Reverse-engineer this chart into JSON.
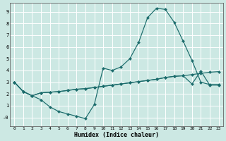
{
  "xlabel": "Humidex (Indice chaleur)",
  "background_color": "#cce8e3",
  "grid_color": "#ffffff",
  "line_color": "#1a6b6b",
  "xlim": [
    -0.5,
    23.5
  ],
  "ylim": [
    -0.75,
    9.75
  ],
  "xticks": [
    0,
    1,
    2,
    3,
    4,
    5,
    6,
    7,
    8,
    9,
    10,
    11,
    12,
    13,
    14,
    15,
    16,
    17,
    18,
    19,
    20,
    21,
    22,
    23
  ],
  "yticks": [
    0,
    1,
    2,
    3,
    4,
    5,
    6,
    7,
    8,
    9
  ],
  "ytick_labels": [
    "-0",
    "1",
    "2",
    "3",
    "4",
    "5",
    "6",
    "7",
    "8",
    "9"
  ],
  "line1_x": [
    0,
    1,
    2,
    3,
    4,
    5,
    6,
    7,
    8,
    9,
    10,
    11,
    12,
    13,
    14,
    15,
    16,
    17,
    18,
    19,
    20,
    21,
    22,
    23
  ],
  "line1_y": [
    3.0,
    2.2,
    1.85,
    1.5,
    0.9,
    0.5,
    0.3,
    0.1,
    -0.1,
    1.1,
    4.2,
    4.0,
    4.3,
    5.0,
    6.4,
    8.5,
    9.3,
    9.2,
    8.1,
    6.5,
    4.85,
    3.0,
    2.8,
    2.8
  ],
  "line2_x": [
    0,
    1,
    2,
    3,
    4,
    5,
    6,
    7,
    8,
    9,
    10,
    11,
    12,
    13,
    14,
    15,
    16,
    17,
    18,
    19,
    20,
    21,
    22,
    23
  ],
  "line2_y": [
    3.0,
    2.2,
    1.85,
    2.1,
    2.15,
    2.2,
    2.3,
    2.4,
    2.45,
    2.55,
    2.65,
    2.75,
    2.85,
    2.95,
    3.05,
    3.15,
    3.25,
    3.4,
    3.5,
    3.55,
    3.65,
    3.75,
    3.85,
    3.9
  ],
  "line3_x": [
    0,
    1,
    2,
    3,
    4,
    5,
    6,
    7,
    8,
    9,
    10,
    11,
    12,
    13,
    14,
    15,
    16,
    17,
    18,
    19,
    20,
    21,
    22,
    23
  ],
  "line3_y": [
    3.0,
    2.2,
    1.85,
    2.1,
    2.15,
    2.2,
    2.3,
    2.4,
    2.45,
    2.55,
    2.65,
    2.75,
    2.85,
    2.95,
    3.05,
    3.15,
    3.25,
    3.4,
    3.5,
    3.55,
    2.85,
    3.95,
    2.75,
    2.75
  ]
}
